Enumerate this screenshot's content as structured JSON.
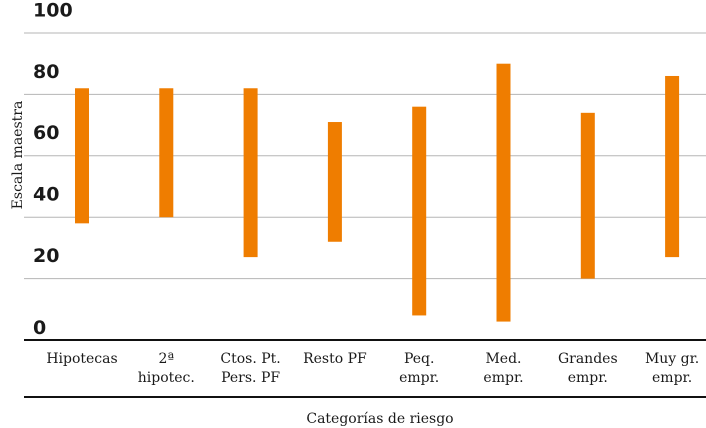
{
  "chart_data": {
    "type": "range-bar",
    "ylabel": "Escala maestra",
    "xlabel": "Categorías de riesgo",
    "ylim": [
      0,
      100
    ],
    "yticks": [
      "0",
      "20",
      "40",
      "60",
      "80",
      "100"
    ],
    "grid": true,
    "categories": [
      [
        "Hipotecas"
      ],
      [
        "2ª",
        "hipotec."
      ],
      [
        "Ctos. Pt.",
        "Pers. PF"
      ],
      [
        "Resto PF"
      ],
      [
        "Peq.",
        "empr."
      ],
      [
        "Med.",
        "empr."
      ],
      [
        "Grandes",
        "empr."
      ],
      [
        "Muy gr.",
        "empr."
      ]
    ],
    "series": [
      {
        "low": [
          38,
          40,
          27,
          32,
          8,
          6,
          20,
          27
        ],
        "high": [
          82,
          82,
          82,
          71,
          76,
          90,
          74,
          86
        ],
        "color": "#ef7d00"
      }
    ]
  }
}
